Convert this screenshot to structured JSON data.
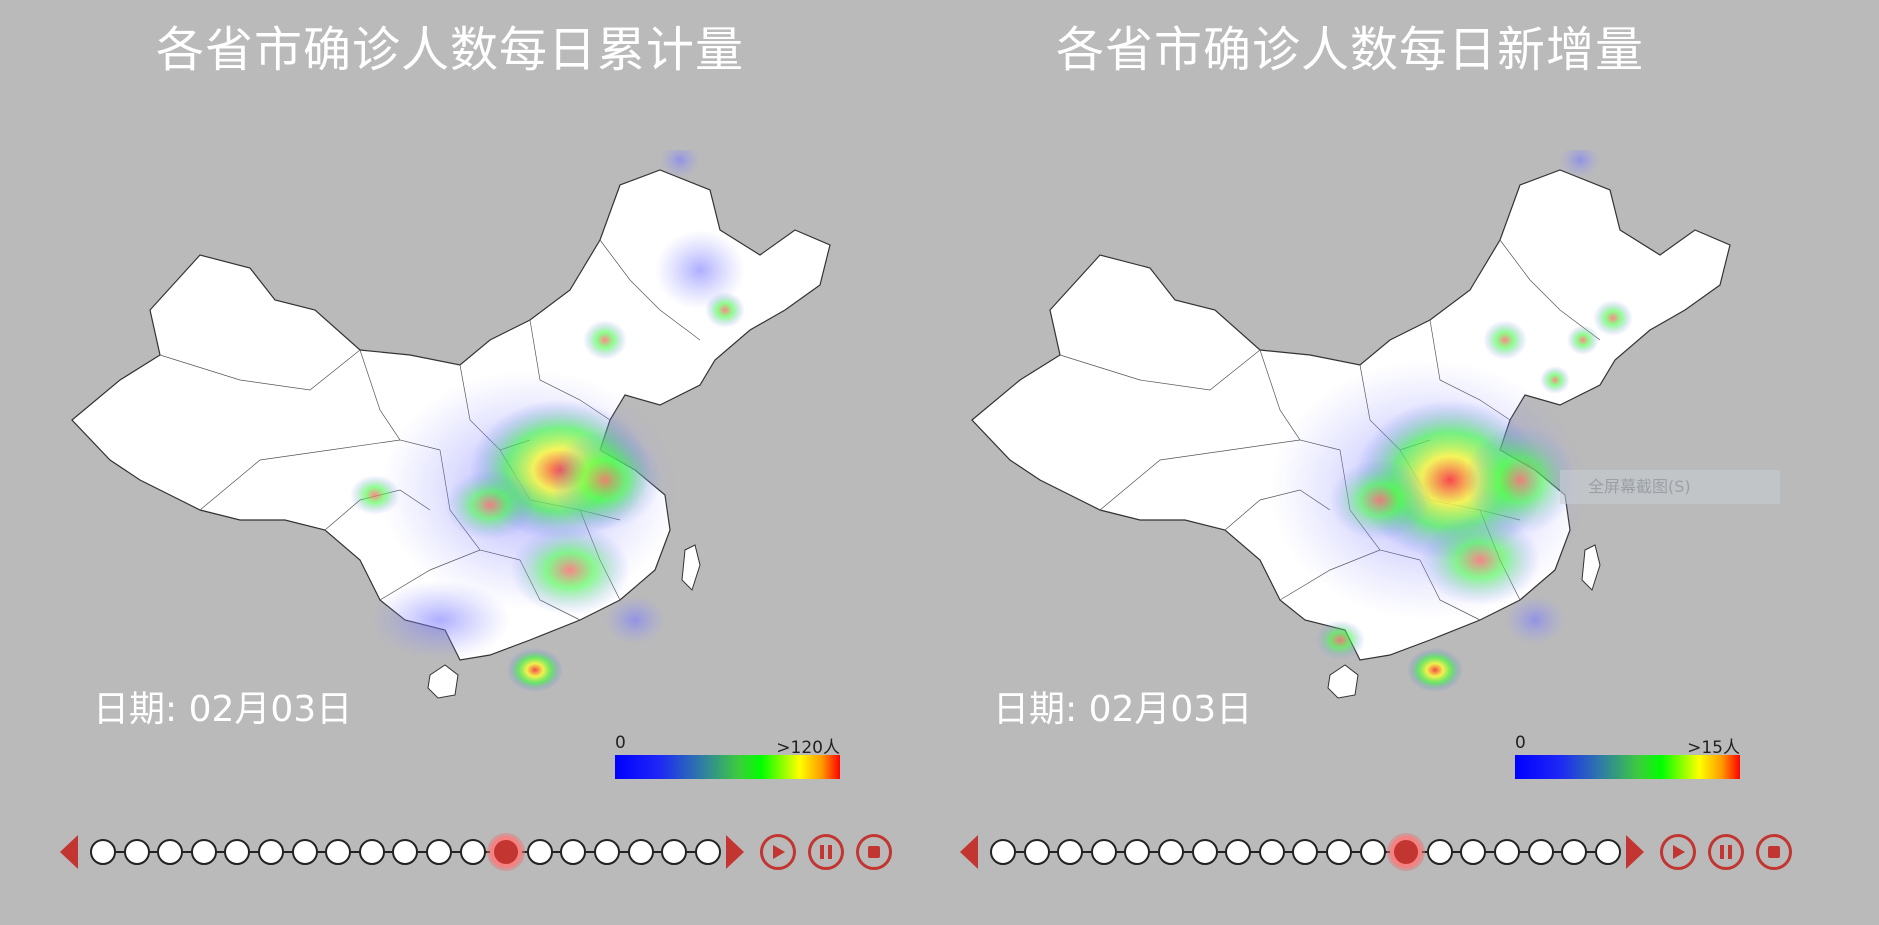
{
  "panels": [
    {
      "title": "各省市确诊人数每日累计量",
      "date_label": "日期: 02月03日",
      "legend": {
        "min_label": "0",
        "max_label": ">120人"
      }
    },
    {
      "title": "各省市确诊人数每日新增量",
      "date_label": "日期: 02月03日",
      "legend": {
        "min_label": "0",
        "max_label": ">15人"
      }
    }
  ],
  "timeline": {
    "total_points": 19,
    "current_index": 12
  },
  "overlay": {
    "screenshot_hint": "全屏幕截图(S)"
  },
  "colors": {
    "accent": "#c23531",
    "background": "#bababa",
    "map_fill": "#ffffff"
  }
}
